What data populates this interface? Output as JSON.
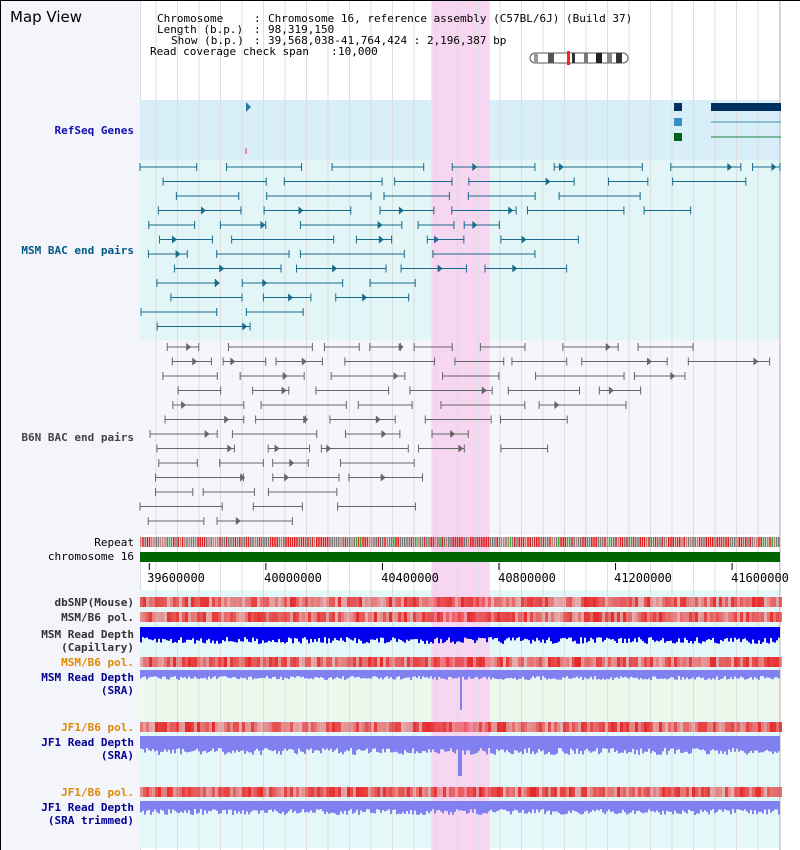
{
  "title": "Map View",
  "header": {
    "chromosome_label": "Chromosome",
    "chromosome_value": "Chromosome 16, reference assembly (C57BL/6J) (Build 37)",
    "length_label": "Length (b.p.)",
    "length_value": "98,319,150",
    "show_label": "Show (b.p.)",
    "show_value": "39,568,038-41,764,424 : 2,196,387 bp",
    "span_label": "Read coverage check span",
    "span_value": "10,000"
  },
  "tracks": {
    "refseq": "RefSeq Genes",
    "msm_bac": "MSM BAC end pairs",
    "b6n_bac": "B6N BAC end pairs",
    "repeat": "Repeat",
    "chromosome": "chromosome 16",
    "dbsnp": "dbSNP(Mouse)",
    "msm_b6_pol_1": "MSM/B6 pol.",
    "msm_depth_cap_1": "MSM Read Depth",
    "msm_depth_cap_2": "(Capillary)",
    "msm_b6_pol_2": "MSM/B6 pol.",
    "msm_depth_sra_1": "MSM Read Depth",
    "msm_depth_sra_2": "(SRA)",
    "jf1_b6_pol_1": "JF1/B6 pol.",
    "jf1_depth_sra_1": "JF1 Read Depth",
    "jf1_depth_sra_2": "(SRA)",
    "jf1_b6_pol_2": "JF1/B6 pol.",
    "jf1_depth_trim_1": "JF1 Read Depth",
    "jf1_depth_trim_2": "(SRA trimmed)"
  },
  "axis": {
    "ticks": [
      "39600000",
      "40000000",
      "40400000",
      "40800000",
      "41200000",
      "41600000"
    ],
    "tick_values": [
      39600000,
      40000000,
      40400000,
      40800000,
      41200000,
      41600000
    ]
  },
  "view": {
    "start": 39568038,
    "end": 41764424,
    "highlight_start": 40568000,
    "highlight_end": 40768000
  },
  "colors": {
    "refseq_bg": "#d8eef8",
    "msm_bg": "#e2f6f8",
    "b6n_bg": "#f6f6fa",
    "highlight": "#f6d6f0",
    "chromosome": "#006400",
    "teal_pair": "#1a6a8a",
    "gray_pair": "#666666",
    "depth_dark": "#0000ee",
    "depth_light": "#8080f0",
    "pol": "#f08080"
  }
}
